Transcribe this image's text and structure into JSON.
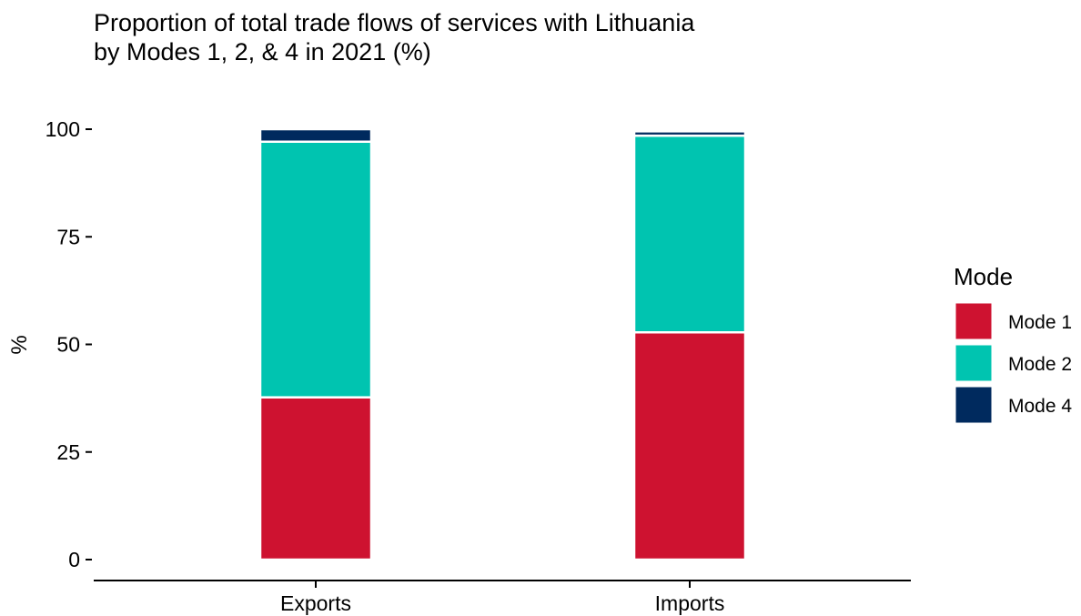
{
  "chart_data": {
    "type": "bar",
    "stacked": true,
    "title": "Proportion of total trade flows of services with Lithuania",
    "subtitle": "by Modes 1, 2, & 4 in 2021 (%)",
    "xlabel": "",
    "ylabel": "%",
    "ylim": [
      0,
      100
    ],
    "yticks": [
      "0",
      "25",
      "50",
      "75",
      "100"
    ],
    "categories": [
      "Exports",
      "Imports"
    ],
    "series": [
      {
        "name": "Mode 1",
        "color": "#CE1230",
        "values": [
          37.7,
          52.8
        ]
      },
      {
        "name": "Mode 2",
        "color": "#00C4B0",
        "values": [
          59.4,
          45.7
        ]
      },
      {
        "name": "Mode 4",
        "color": "#002A5E",
        "values": [
          2.9,
          1.0
        ]
      }
    ],
    "legend": {
      "title": "Mode",
      "position": "right"
    },
    "grid": false
  }
}
